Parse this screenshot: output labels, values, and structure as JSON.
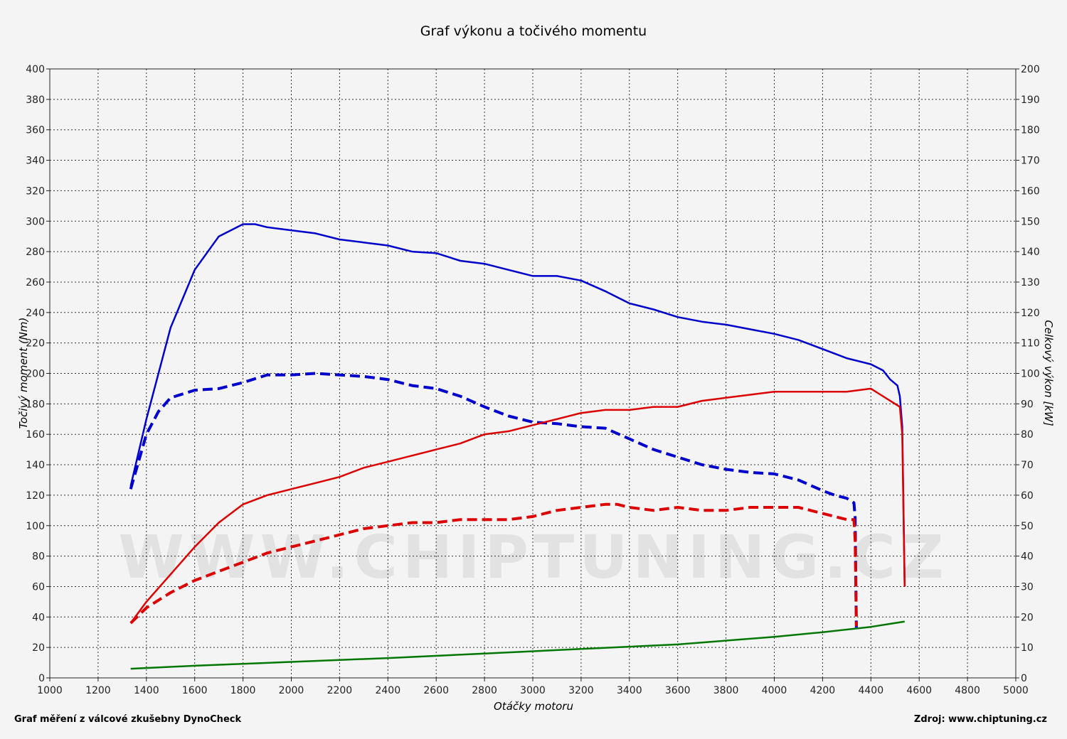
{
  "chart_data": {
    "type": "line",
    "title": "Graf výkonu a točivého momentu",
    "xlabel": "Otáčky motoru",
    "ylabel_left": "Točivý moment (Nm)",
    "ylabel_right": "Celkový výkon [kW]",
    "xlim": [
      1000,
      5000
    ],
    "ylim_left": [
      0,
      400
    ],
    "ylim_right": [
      0,
      200
    ],
    "x_ticks": [
      1000,
      1200,
      1400,
      1600,
      1800,
      2000,
      2200,
      2400,
      2600,
      2800,
      3000,
      3200,
      3400,
      3600,
      3800,
      4000,
      4200,
      4400,
      4600,
      4800,
      5000
    ],
    "y_left_ticks": [
      0,
      20,
      40,
      60,
      80,
      100,
      120,
      140,
      160,
      180,
      200,
      220,
      240,
      260,
      280,
      300,
      320,
      340,
      360,
      380,
      400
    ],
    "y_right_ticks": [
      0,
      10,
      20,
      30,
      40,
      50,
      60,
      70,
      80,
      90,
      100,
      110,
      120,
      130,
      140,
      150,
      160,
      170,
      180,
      190,
      200
    ],
    "grid": true,
    "series": [
      {
        "axis": "left",
        "color": "#0000cc",
        "dash": false,
        "points": [
          [
            1335,
            126
          ],
          [
            1400,
            170
          ],
          [
            1500,
            230
          ],
          [
            1600,
            268
          ],
          [
            1700,
            290
          ],
          [
            1800,
            298
          ],
          [
            1850,
            298
          ],
          [
            1900,
            296
          ],
          [
            2000,
            294
          ],
          [
            2100,
            292
          ],
          [
            2200,
            288
          ],
          [
            2300,
            286
          ],
          [
            2400,
            284
          ],
          [
            2500,
            280
          ],
          [
            2600,
            279
          ],
          [
            2700,
            274
          ],
          [
            2800,
            272
          ],
          [
            2900,
            268
          ],
          [
            3000,
            264
          ],
          [
            3100,
            264
          ],
          [
            3200,
            261
          ],
          [
            3300,
            254
          ],
          [
            3400,
            246
          ],
          [
            3500,
            242
          ],
          [
            3600,
            237
          ],
          [
            3700,
            234
          ],
          [
            3800,
            232
          ],
          [
            3900,
            229
          ],
          [
            4000,
            226
          ],
          [
            4100,
            222
          ],
          [
            4200,
            216
          ],
          [
            4300,
            210
          ],
          [
            4400,
            206
          ],
          [
            4450,
            202
          ],
          [
            4480,
            196
          ],
          [
            4510,
            192
          ],
          [
            4520,
            185
          ],
          [
            4530,
            165
          ],
          [
            4540,
            60
          ]
        ]
      },
      {
        "axis": "left",
        "color": "#0000cc",
        "dash": true,
        "points": [
          [
            1335,
            124
          ],
          [
            1400,
            160
          ],
          [
            1450,
            175
          ],
          [
            1500,
            184
          ],
          [
            1600,
            189
          ],
          [
            1700,
            190
          ],
          [
            1800,
            194
          ],
          [
            1900,
            199
          ],
          [
            2000,
            199
          ],
          [
            2100,
            200
          ],
          [
            2200,
            199
          ],
          [
            2300,
            198
          ],
          [
            2400,
            196
          ],
          [
            2500,
            192
          ],
          [
            2600,
            190
          ],
          [
            2700,
            185
          ],
          [
            2800,
            178
          ],
          [
            2900,
            172
          ],
          [
            3000,
            168
          ],
          [
            3100,
            167
          ],
          [
            3200,
            165
          ],
          [
            3300,
            164
          ],
          [
            3400,
            157
          ],
          [
            3500,
            150
          ],
          [
            3600,
            145
          ],
          [
            3700,
            140
          ],
          [
            3800,
            137
          ],
          [
            3900,
            135
          ],
          [
            4000,
            134
          ],
          [
            4100,
            130
          ],
          [
            4200,
            123
          ],
          [
            4250,
            120
          ],
          [
            4300,
            118
          ],
          [
            4330,
            115
          ],
          [
            4335,
            105
          ],
          [
            4340,
            33
          ]
        ]
      },
      {
        "axis": "right",
        "color": "#dd0000",
        "dash": false,
        "points": [
          [
            1335,
            18
          ],
          [
            1400,
            25
          ],
          [
            1500,
            34
          ],
          [
            1600,
            43
          ],
          [
            1700,
            51
          ],
          [
            1800,
            57
          ],
          [
            1900,
            60
          ],
          [
            2000,
            62
          ],
          [
            2100,
            64
          ],
          [
            2200,
            66
          ],
          [
            2300,
            69
          ],
          [
            2400,
            71
          ],
          [
            2500,
            73
          ],
          [
            2600,
            75
          ],
          [
            2700,
            77
          ],
          [
            2800,
            80
          ],
          [
            2900,
            81
          ],
          [
            3000,
            83
          ],
          [
            3100,
            85
          ],
          [
            3200,
            87
          ],
          [
            3300,
            88
          ],
          [
            3400,
            88
          ],
          [
            3500,
            89
          ],
          [
            3600,
            89
          ],
          [
            3700,
            91
          ],
          [
            3800,
            92
          ],
          [
            3900,
            93
          ],
          [
            4000,
            94
          ],
          [
            4100,
            94
          ],
          [
            4200,
            94
          ],
          [
            4300,
            94
          ],
          [
            4400,
            95
          ],
          [
            4440,
            93
          ],
          [
            4480,
            91
          ],
          [
            4520,
            89
          ],
          [
            4530,
            80
          ],
          [
            4540,
            30
          ]
        ]
      },
      {
        "axis": "right",
        "color": "#dd0000",
        "dash": true,
        "points": [
          [
            1335,
            18
          ],
          [
            1400,
            23
          ],
          [
            1500,
            28
          ],
          [
            1600,
            32
          ],
          [
            1700,
            35
          ],
          [
            1800,
            38
          ],
          [
            1900,
            41
          ],
          [
            2000,
            43
          ],
          [
            2100,
            45
          ],
          [
            2200,
            47
          ],
          [
            2300,
            49
          ],
          [
            2400,
            50
          ],
          [
            2500,
            51
          ],
          [
            2600,
            51
          ],
          [
            2700,
            52
          ],
          [
            2800,
            52
          ],
          [
            2900,
            52
          ],
          [
            3000,
            53
          ],
          [
            3100,
            55
          ],
          [
            3200,
            56
          ],
          [
            3300,
            57
          ],
          [
            3350,
            57
          ],
          [
            3400,
            56
          ],
          [
            3500,
            55
          ],
          [
            3600,
            56
          ],
          [
            3700,
            55
          ],
          [
            3800,
            55
          ],
          [
            3900,
            56
          ],
          [
            4000,
            56
          ],
          [
            4100,
            56
          ],
          [
            4200,
            54
          ],
          [
            4250,
            53
          ],
          [
            4300,
            52
          ],
          [
            4330,
            52
          ],
          [
            4335,
            45
          ],
          [
            4340,
            17
          ]
        ]
      },
      {
        "axis": "left",
        "color": "#007700",
        "dash": false,
        "points": [
          [
            1335,
            6
          ],
          [
            1600,
            8
          ],
          [
            2000,
            10.5
          ],
          [
            2400,
            13
          ],
          [
            2800,
            16
          ],
          [
            3200,
            19
          ],
          [
            3600,
            22
          ],
          [
            4000,
            27
          ],
          [
            4200,
            30
          ],
          [
            4400,
            33.5
          ],
          [
            4540,
            37
          ]
        ]
      }
    ]
  },
  "footer": {
    "left": "Graf měření z válcové zkušebny DynoCheck",
    "right": "Zdroj: www.chiptuning.cz"
  },
  "watermark": "WWW.CHIPTUNING.CZ"
}
